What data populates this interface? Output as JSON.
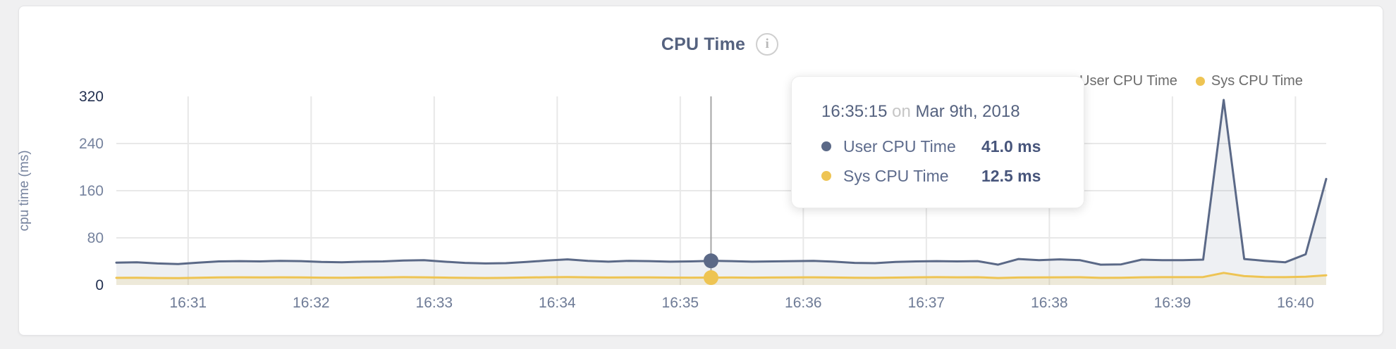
{
  "header": {
    "title": "CPU Time",
    "info_icon_glyph": "i"
  },
  "legend": {
    "items": [
      {
        "label": "User CPU Time",
        "color": "#5b6987"
      },
      {
        "label": "Sys CPU Time",
        "color": "#eec453"
      }
    ]
  },
  "tooltip": {
    "time": "16:35:15",
    "connector": "on",
    "date": "Mar 9th, 2018",
    "rows": [
      {
        "label": "User CPU Time",
        "value": "41.0 ms",
        "color": "#5b6987"
      },
      {
        "label": "Sys CPU Time",
        "value": "12.5 ms",
        "color": "#eec453"
      }
    ]
  },
  "colors": {
    "grid": "#e8e8e8",
    "hover_line": "#a6a6a6",
    "axis_emph": "#233050",
    "axis_normal": "#76839e",
    "x_label": "#6e7b96",
    "y_axis_title": "#76839e"
  },
  "chart_data": {
    "type": "area",
    "title": "CPU Time",
    "xlabel": "",
    "ylabel": "cpu time (ms)",
    "ylim": [
      0,
      320
    ],
    "grid": true,
    "legend_position": "top-right",
    "y_ticks": [
      {
        "v": 0,
        "grid": false,
        "emph": true
      },
      {
        "v": 80,
        "grid": true,
        "emph": false
      },
      {
        "v": 160,
        "grid": true,
        "emph": false
      },
      {
        "v": 240,
        "grid": true,
        "emph": false
      },
      {
        "v": 320,
        "grid": false,
        "emph": true
      }
    ],
    "x_ticks": [
      "16:31",
      "16:32",
      "16:33",
      "16:34",
      "16:35",
      "16:36",
      "16:37",
      "16:38",
      "16:39",
      "16:40"
    ],
    "x": [
      "16:30:25",
      "16:30:35",
      "16:30:45",
      "16:30:55",
      "16:31:05",
      "16:31:15",
      "16:31:25",
      "16:31:35",
      "16:31:45",
      "16:31:55",
      "16:32:05",
      "16:32:15",
      "16:32:25",
      "16:32:35",
      "16:32:45",
      "16:32:55",
      "16:33:05",
      "16:33:15",
      "16:33:25",
      "16:33:35",
      "16:33:45",
      "16:33:55",
      "16:34:05",
      "16:34:15",
      "16:34:25",
      "16:34:35",
      "16:34:45",
      "16:34:55",
      "16:35:05",
      "16:35:15",
      "16:35:25",
      "16:35:35",
      "16:35:45",
      "16:35:55",
      "16:36:05",
      "16:36:15",
      "16:36:25",
      "16:36:35",
      "16:36:45",
      "16:36:55",
      "16:37:05",
      "16:37:15",
      "16:37:25",
      "16:37:35",
      "16:37:45",
      "16:37:55",
      "16:38:05",
      "16:38:15",
      "16:38:25",
      "16:38:35",
      "16:38:45",
      "16:38:55",
      "16:39:05",
      "16:39:15",
      "16:39:25",
      "16:39:35",
      "16:39:45",
      "16:39:55",
      "16:40:05",
      "16:40:15"
    ],
    "series": [
      {
        "name": "User CPU Time",
        "unit": "ms",
        "color": "#5b6987",
        "fill": "rgba(91,105,135,0.10)",
        "values": [
          38.0,
          38.5,
          36.5,
          35.5,
          38.0,
          40.0,
          40.5,
          40.0,
          41.0,
          40.5,
          39.0,
          38.5,
          39.5,
          40.0,
          41.5,
          42.0,
          39.5,
          37.5,
          36.5,
          37.0,
          39.0,
          41.5,
          43.5,
          41.0,
          39.5,
          41.0,
          40.5,
          39.5,
          40.0,
          41.0,
          40.5,
          39.5,
          40.0,
          40.5,
          41.0,
          39.5,
          37.5,
          37.0,
          39.0,
          40.0,
          40.5,
          40.0,
          40.5,
          34.5,
          44.0,
          42.0,
          43.5,
          42.0,
          34.5,
          35.0,
          43.0,
          42.0,
          42.0,
          43.0,
          314.0,
          44.0,
          41.0,
          38.5,
          52.0,
          180.0
        ]
      },
      {
        "name": "Sys CPU Time",
        "unit": "ms",
        "color": "#eec453",
        "fill": "rgba(238,196,83,0.16)",
        "values": [
          12.0,
          12.3,
          11.8,
          11.6,
          12.2,
          12.8,
          13.0,
          12.8,
          13.0,
          12.9,
          12.4,
          12.2,
          12.6,
          12.8,
          13.2,
          13.0,
          12.5,
          12.0,
          11.8,
          12.0,
          12.6,
          13.1,
          13.4,
          13.0,
          12.6,
          12.9,
          12.8,
          12.5,
          12.4,
          12.5,
          12.6,
          12.4,
          12.6,
          12.8,
          13.0,
          12.6,
          12.2,
          12.1,
          12.5,
          13.0,
          13.2,
          13.0,
          13.1,
          11.8,
          12.6,
          12.8,
          13.0,
          13.1,
          12.0,
          12.2,
          13.0,
          13.2,
          13.3,
          13.5,
          20.5,
          15.0,
          13.5,
          13.2,
          14.0,
          16.5
        ]
      }
    ],
    "hover_index": 29
  }
}
